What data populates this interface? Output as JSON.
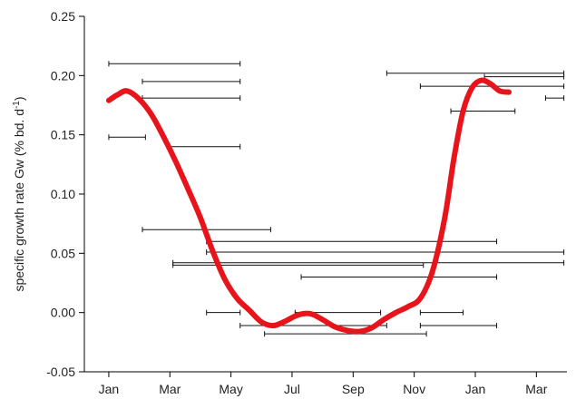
{
  "chart_data": {
    "type": "line",
    "title": "",
    "xlabel": "",
    "ylabel": "specific growth rate Gw (% bd. d",
    "ylabel_superscript": "-1",
    "ylabel_suffix": ")",
    "ylim": [
      -0.05,
      0.25
    ],
    "y_ticks": [
      -0.05,
      0.0,
      0.05,
      0.1,
      0.15,
      0.2,
      0.25
    ],
    "y_tick_labels": [
      "-0.05",
      "0.00",
      "0.05",
      "0.10",
      "0.15",
      "0.20",
      "0.25"
    ],
    "x_ticks": [
      0,
      2,
      4,
      6,
      8,
      10,
      12,
      14
    ],
    "x_tick_labels": [
      "Jan",
      "Mar",
      "May",
      "Jul",
      "Sep",
      "Nov",
      "Jan",
      "Mar"
    ],
    "xlim": [
      -0.8,
      15.0
    ],
    "grid": false,
    "legend": "none",
    "series": [
      {
        "color": "#e8141b",
        "x": [
          0.0,
          0.3,
          0.6,
          1.0,
          1.4,
          1.8,
          2.2,
          2.6,
          3.0,
          3.4,
          3.8,
          4.2,
          4.6,
          5.0,
          5.4,
          5.8,
          6.2,
          6.6,
          7.0,
          7.4,
          7.8,
          8.2,
          8.6,
          9.0,
          9.4,
          9.8,
          10.2,
          10.6,
          11.0,
          11.3,
          11.6,
          11.9,
          12.2,
          12.5,
          12.8,
          13.1
        ],
        "y": [
          0.179,
          0.184,
          0.187,
          0.18,
          0.167,
          0.148,
          0.127,
          0.104,
          0.08,
          0.052,
          0.028,
          0.012,
          0.002,
          -0.008,
          -0.011,
          -0.007,
          -0.002,
          -0.001,
          -0.006,
          -0.012,
          -0.015,
          -0.016,
          -0.013,
          -0.006,
          0.0,
          0.005,
          0.012,
          0.035,
          0.08,
          0.13,
          0.17,
          0.19,
          0.196,
          0.193,
          0.187,
          0.186
        ]
      }
    ],
    "ranges": [
      {
        "x1": 0.0,
        "x2": 4.3,
        "y": 0.21
      },
      {
        "x1": 1.1,
        "x2": 4.3,
        "y": 0.195
      },
      {
        "x1": 1.1,
        "x2": 4.3,
        "y": 0.181
      },
      {
        "x1": 0.0,
        "x2": 1.2,
        "y": 0.148
      },
      {
        "x1": 2.0,
        "x2": 4.3,
        "y": 0.14
      },
      {
        "x1": 1.1,
        "x2": 5.3,
        "y": 0.07
      },
      {
        "x1": 3.2,
        "x2": 12.7,
        "y": 0.06
      },
      {
        "x1": 3.2,
        "x2": 14.9,
        "y": 0.051
      },
      {
        "x1": 2.1,
        "x2": 10.3,
        "y": 0.04
      },
      {
        "x1": 2.1,
        "x2": 14.9,
        "y": 0.042
      },
      {
        "x1": 6.3,
        "x2": 12.7,
        "y": 0.03
      },
      {
        "x1": 3.2,
        "x2": 4.3,
        "y": 0.0
      },
      {
        "x1": 6.1,
        "x2": 8.9,
        "y": 0.0
      },
      {
        "x1": 4.3,
        "x2": 9.1,
        "y": -0.011
      },
      {
        "x1": 5.1,
        "x2": 10.4,
        "y": -0.018
      },
      {
        "x1": 10.2,
        "x2": 11.6,
        "y": 0.0
      },
      {
        "x1": 10.2,
        "x2": 12.7,
        "y": -0.011
      },
      {
        "x1": 9.1,
        "x2": 14.9,
        "y": 0.202
      },
      {
        "x1": 12.3,
        "x2": 14.9,
        "y": 0.199
      },
      {
        "x1": 10.2,
        "x2": 14.9,
        "y": 0.191
      },
      {
        "x1": 14.3,
        "x2": 14.9,
        "y": 0.181
      },
      {
        "x1": 11.2,
        "x2": 13.3,
        "y": 0.17
      }
    ]
  }
}
